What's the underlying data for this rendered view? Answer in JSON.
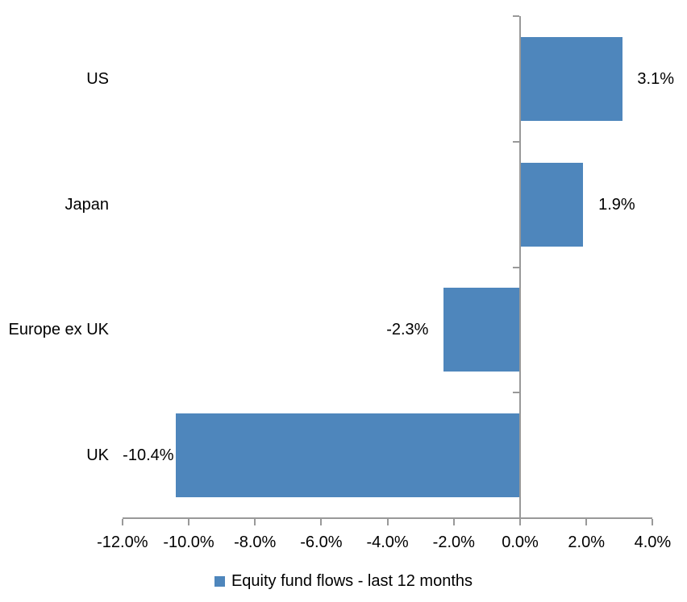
{
  "chart_data": {
    "type": "bar",
    "orientation": "horizontal",
    "categories": [
      "US",
      "Japan",
      "Europe ex UK",
      "UK"
    ],
    "values": [
      3.1,
      1.9,
      -2.3,
      -10.4
    ],
    "value_labels": [
      "3.1%",
      "1.9%",
      "-2.3%",
      "-10.4%"
    ],
    "x_ticks": [
      -12,
      -10,
      -8,
      -6,
      -4,
      -2,
      0,
      2,
      4
    ],
    "x_tick_labels": [
      "-12.0%",
      "-10.0%",
      "-8.0%",
      "-6.0%",
      "-4.0%",
      "-2.0%",
      "0.0%",
      "2.0%",
      "4.0%"
    ],
    "xlim": [
      -12,
      4
    ],
    "legend": "Equity fund flows - last 12 months",
    "legend_position": "bottom-center",
    "grid": "off",
    "bar_color": "#4E86BC",
    "axis_color": "#999999",
    "text_color": "#000000",
    "background_color": "#FFFFFF"
  }
}
